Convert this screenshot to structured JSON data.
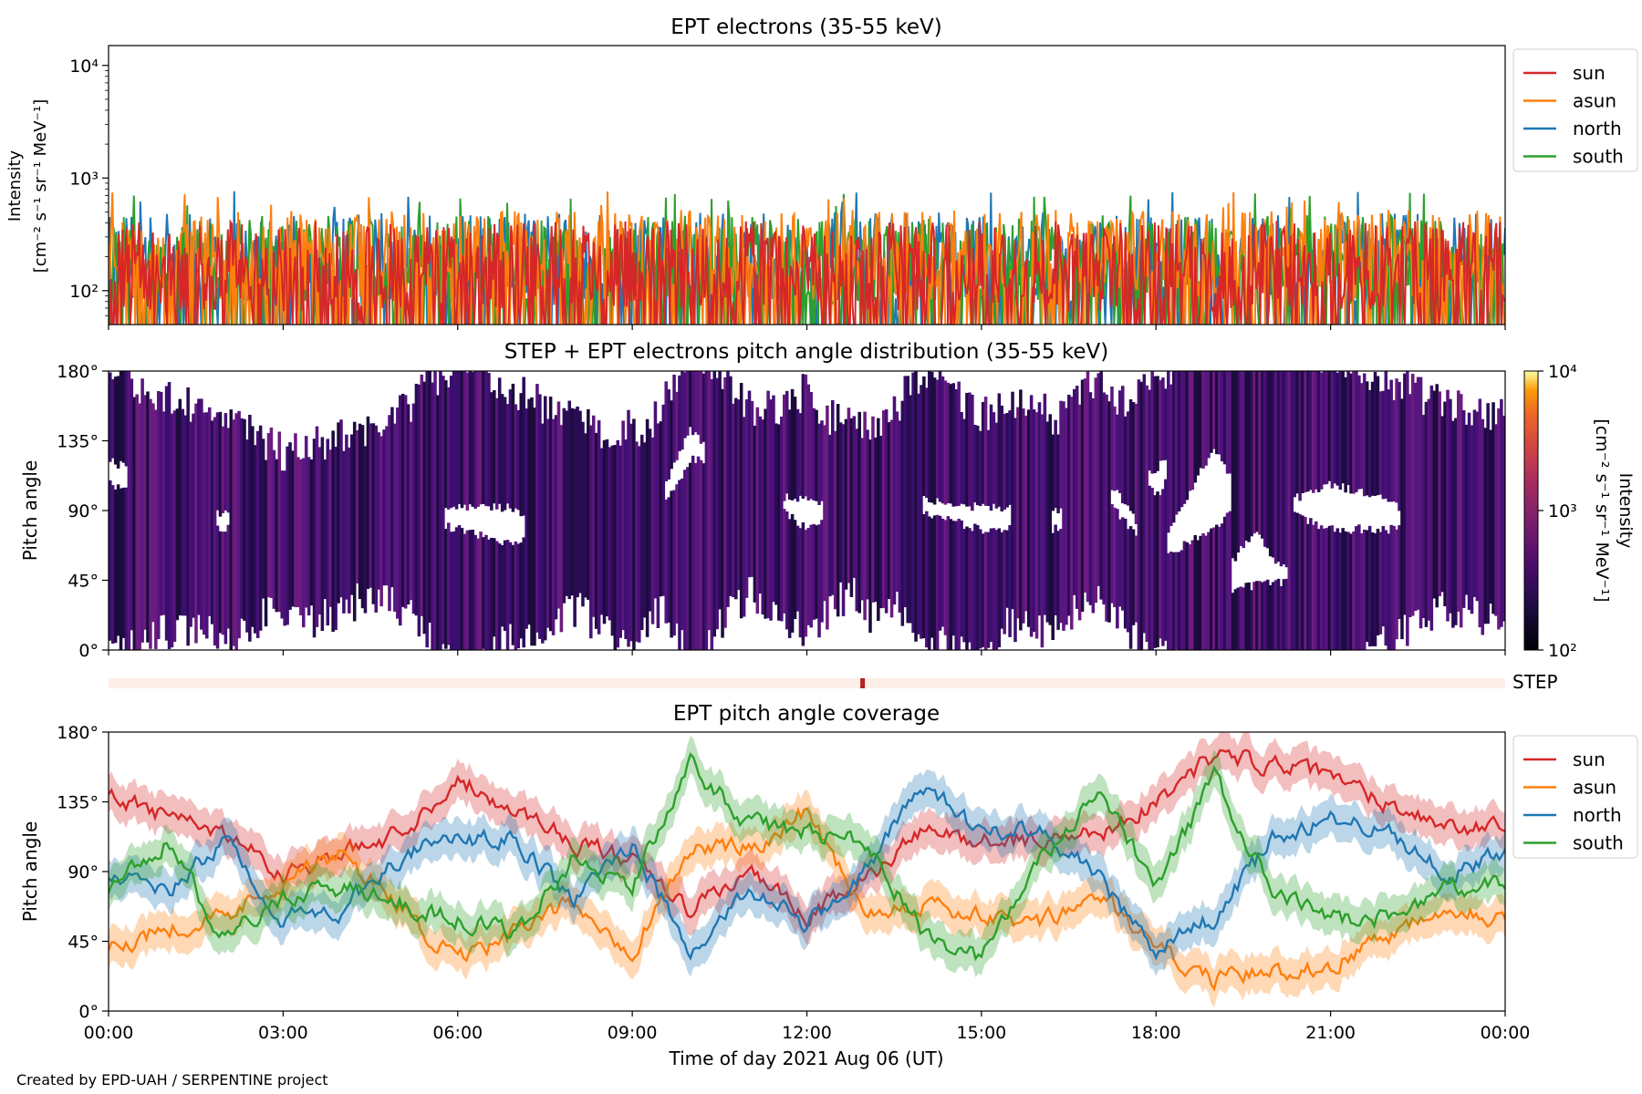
{
  "figure": {
    "footer": "Created by EPD-UAH / SERPENTINE project",
    "xlabel": "Time of day 2021 Aug 06 (UT)",
    "xticks": [
      "00:00",
      "03:00",
      "06:00",
      "09:00",
      "12:00",
      "15:00",
      "18:00",
      "21:00",
      "00:00"
    ]
  },
  "colors": {
    "sun": "#d62728",
    "asun": "#ff7f0e",
    "north": "#1f77b4",
    "south": "#2ca02c",
    "step_bar": "#b22222",
    "step_track": "#fdeeea"
  },
  "chart_data": [
    {
      "id": "intensity",
      "type": "line",
      "title": "EPT electrons (35-55 keV)",
      "ylabel_line1": "Intensity",
      "ylabel_line2": "[cm⁻² s⁻¹ sr⁻¹ MeV⁻¹]",
      "yscale": "log",
      "ylim": [
        50,
        15000
      ],
      "yticks": [
        {
          "value": 100,
          "label": "10²"
        },
        {
          "value": 1000,
          "label": "10³"
        },
        {
          "value": 10000,
          "label": "10⁴"
        }
      ],
      "xlim_hours": [
        0,
        24
      ],
      "legend": "top-right outside",
      "series": [
        {
          "name": "north",
          "color": "#1f77b4",
          "median": 180,
          "peak": 780
        },
        {
          "name": "south",
          "color": "#2ca02c",
          "median": 170,
          "peak": 750
        },
        {
          "name": "asun",
          "color": "#ff7f0e",
          "median": 190,
          "peak": 760
        },
        {
          "name": "sun",
          "color": "#d62728",
          "median": 150,
          "peak": 450
        }
      ]
    },
    {
      "id": "pad",
      "type": "heatmap",
      "title": "STEP + EPT electrons pitch angle distribution (35-55 keV)",
      "ylabel": "Pitch angle",
      "ylim": [
        0,
        180
      ],
      "yticks": [
        {
          "value": 0,
          "label": "0°"
        },
        {
          "value": 45,
          "label": "45°"
        },
        {
          "value": 90,
          "label": "90°"
        },
        {
          "value": 135,
          "label": "135°"
        },
        {
          "value": 180,
          "label": "180°"
        }
      ],
      "colorbar": {
        "label_line1": "Intensity",
        "label_line2": "[cm⁻² s⁻¹ sr⁻¹ MeV⁻¹]",
        "scale": "log",
        "range": [
          100,
          10000
        ],
        "ticks": [
          {
            "value": 100,
            "label": "10²"
          },
          {
            "value": 1000,
            "label": "10³"
          },
          {
            "value": 10000,
            "label": "10⁴"
          }
        ],
        "colormap": "inferno"
      },
      "typical_intensity": 220
    },
    {
      "id": "step",
      "type": "bar",
      "label": "STEP",
      "marker_hour": 12.95
    },
    {
      "id": "coverage",
      "type": "line",
      "title": "EPT pitch angle coverage",
      "ylabel": "Pitch angle",
      "ylim": [
        0,
        180
      ],
      "yticks": [
        {
          "value": 0,
          "label": "0°"
        },
        {
          "value": 45,
          "label": "45°"
        },
        {
          "value": 90,
          "label": "90°"
        },
        {
          "value": 135,
          "label": "135°"
        },
        {
          "value": 180,
          "label": "180°"
        }
      ],
      "legend": "top-right outside",
      "band_halfwidth": 12,
      "x_hours": [
        0,
        1,
        2,
        3,
        4,
        5,
        6,
        7,
        8,
        9,
        10,
        11,
        12,
        13,
        14,
        15,
        16,
        17,
        18,
        19,
        20,
        21,
        22,
        23,
        24
      ],
      "series": [
        {
          "name": "sun",
          "color": "#d62728",
          "values": [
            140,
            125,
            115,
            90,
            100,
            115,
            150,
            130,
            110,
            95,
            65,
            90,
            60,
            85,
            115,
            110,
            110,
            115,
            135,
            165,
            160,
            150,
            135,
            120,
            115
          ]
        },
        {
          "name": "asun",
          "color": "#ff7f0e",
          "values": [
            40,
            55,
            60,
            85,
            100,
            70,
            30,
            50,
            70,
            40,
            105,
            105,
            130,
            65,
            70,
            60,
            55,
            75,
            40,
            20,
            25,
            30,
            50,
            70,
            60
          ]
        },
        {
          "name": "north",
          "color": "#1f77b4",
          "values": [
            90,
            75,
            110,
            60,
            65,
            100,
            110,
            110,
            70,
            110,
            35,
            80,
            55,
            90,
            145,
            115,
            120,
            85,
            40,
            60,
            110,
            125,
            115,
            90,
            100
          ]
        },
        {
          "name": "south",
          "color": "#2ca02c",
          "values": [
            80,
            110,
            45,
            75,
            80,
            70,
            60,
            50,
            100,
            80,
            160,
            120,
            115,
            110,
            50,
            35,
            95,
            140,
            80,
            150,
            75,
            60,
            60,
            80,
            80
          ]
        }
      ]
    }
  ]
}
